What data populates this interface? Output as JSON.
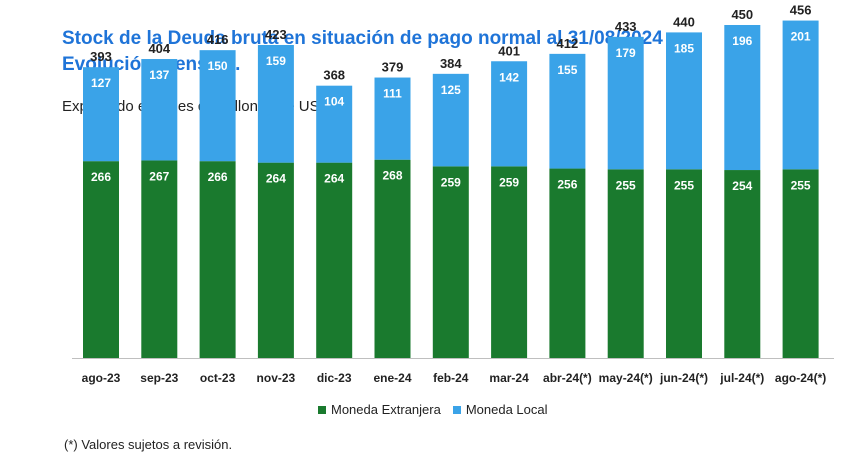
{
  "title": {
    "line1": "Stock de la Deuda bruta en situación de pago normal al 31/08/2024",
    "line2": "Evolución mensual."
  },
  "subtitle": "Expresado en miles de millones de USD.",
  "footnote": "(*) Valores sujetos a revisión.",
  "colors": {
    "foreign": "#1a7a2e",
    "local": "#3aa3e8",
    "title": "#1f74d8"
  },
  "chart_data": {
    "type": "bar",
    "stacked": true,
    "categories": [
      "ago-23",
      "sep-23",
      "oct-23",
      "nov-23",
      "dic-23",
      "ene-24",
      "feb-24",
      "mar-24",
      "abr-24(*)",
      "may-24(*)",
      "jun-24(*)",
      "jul-24(*)",
      "ago-24(*)"
    ],
    "series": [
      {
        "name": "Moneda Extranjera",
        "values": [
          266,
          267,
          266,
          264,
          264,
          268,
          259,
          259,
          256,
          255,
          255,
          254,
          255
        ]
      },
      {
        "name": "Moneda Local",
        "values": [
          127,
          137,
          150,
          159,
          104,
          111,
          125,
          142,
          155,
          179,
          185,
          196,
          201
        ]
      }
    ],
    "totals": [
      393,
      404,
      416,
      423,
      368,
      379,
      384,
      401,
      412,
      433,
      440,
      450,
      456
    ],
    "legend": [
      "Moneda Extranjera",
      "Moneda Local"
    ],
    "legend_position": "bottom",
    "grid": false
  }
}
